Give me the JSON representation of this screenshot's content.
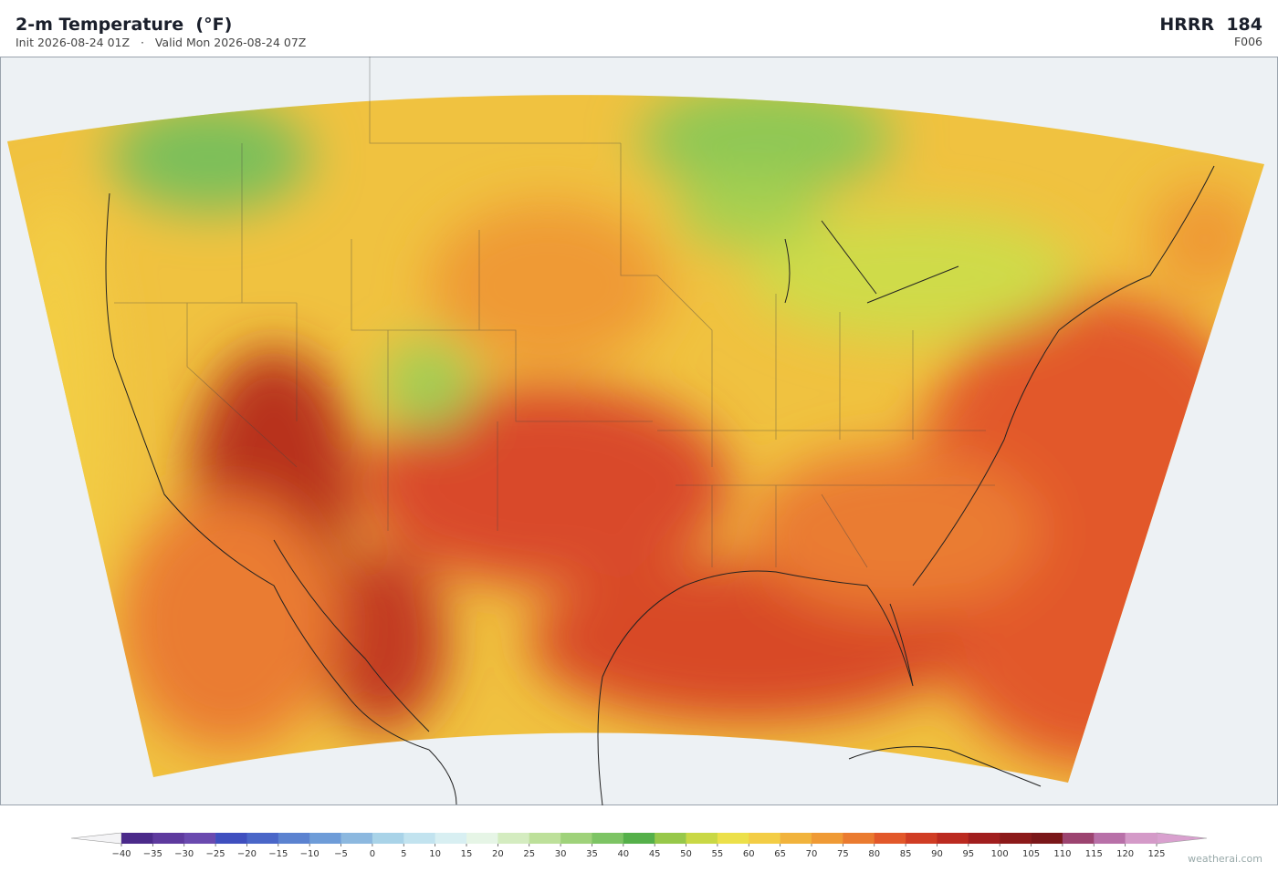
{
  "header": {
    "title": "2-m Temperature  (°F)",
    "subtitle": "Init 2026-08-24 01Z   ·   Valid Mon 2026-08-24 07Z",
    "model": "HRRR  184",
    "forecast_hour": "F006"
  },
  "colorbar": {
    "range": [
      -40,
      125
    ],
    "ticks": [
      {
        "value": -40,
        "label": "−40"
      },
      {
        "value": -35,
        "label": "−35"
      },
      {
        "value": -30,
        "label": "−30"
      },
      {
        "value": -25,
        "label": "−25"
      },
      {
        "value": -20,
        "label": "−20"
      },
      {
        "value": -15,
        "label": "−15"
      },
      {
        "value": -10,
        "label": "−10"
      },
      {
        "value": -5,
        "label": "−5"
      },
      0,
      5,
      10,
      15,
      20,
      25,
      30,
      35,
      40,
      45,
      50,
      55,
      60,
      65,
      70,
      75,
      80,
      85,
      90,
      95,
      100,
      105,
      110,
      115,
      120,
      125
    ],
    "colors": [
      "#4b2a8a",
      "#5e3a9e",
      "#6a4aaf",
      "#3f4fbf",
      "#4a66c8",
      "#5b82d0",
      "#6e9cd8",
      "#8cb8df",
      "#a9d3e8",
      "#c2e3ef",
      "#d8eff2",
      "#e6f5e6",
      "#d4ecc0",
      "#bde09a",
      "#9fd27a",
      "#7dc464",
      "#55b04a",
      "#97c84a",
      "#c9d845",
      "#ece04a",
      "#f3cd45",
      "#f1b33c",
      "#ef9a35",
      "#ea7b30",
      "#e2582a",
      "#d03d24",
      "#bb2a20",
      "#a11e1e",
      "#8c1a1a",
      "#7a1719",
      "#9c4470",
      "#b870a8",
      "#d49ac8"
    ],
    "under_color": "#f4f4f6",
    "over_color": "#d9a0cf"
  },
  "credit": "weatherai.com"
}
